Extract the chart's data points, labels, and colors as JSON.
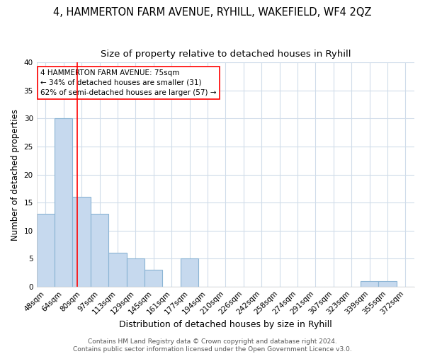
{
  "title": "4, HAMMERTON FARM AVENUE, RYHILL, WAKEFIELD, WF4 2QZ",
  "subtitle": "Size of property relative to detached houses in Ryhill",
  "xlabel": "Distribution of detached houses by size in Ryhill",
  "ylabel": "Number of detached properties",
  "categories": [
    "48sqm",
    "64sqm",
    "80sqm",
    "97sqm",
    "113sqm",
    "129sqm",
    "145sqm",
    "161sqm",
    "177sqm",
    "194sqm",
    "210sqm",
    "226sqm",
    "242sqm",
    "258sqm",
    "274sqm",
    "291sqm",
    "307sqm",
    "323sqm",
    "339sqm",
    "355sqm",
    "372sqm"
  ],
  "values": [
    13,
    30,
    16,
    13,
    6,
    5,
    3,
    0,
    5,
    0,
    0,
    0,
    0,
    0,
    0,
    0,
    0,
    0,
    1,
    1,
    0
  ],
  "bar_color": "#c6d9ee",
  "bar_edge_color": "#8ab4d4",
  "grid_color": "#d0dcea",
  "background_color": "#ffffff",
  "annotation_text_line1": "4 HAMMERTON FARM AVENUE: 75sqm",
  "annotation_text_line2": "← 34% of detached houses are smaller (31)",
  "annotation_text_line3": "62% of semi-detached houses are larger (57) →",
  "annotation_box_color": "white",
  "annotation_box_edge_color": "red",
  "red_line_x": 1.75,
  "ylim": [
    0,
    40
  ],
  "yticks": [
    0,
    5,
    10,
    15,
    20,
    25,
    30,
    35,
    40
  ],
  "footer_text": "Contains HM Land Registry data © Crown copyright and database right 2024.\nContains public sector information licensed under the Open Government Licence v3.0.",
  "title_fontsize": 10.5,
  "subtitle_fontsize": 9.5,
  "xlabel_fontsize": 9,
  "ylabel_fontsize": 8.5,
  "annotation_fontsize": 7.5,
  "footer_fontsize": 6.5,
  "tick_fontsize": 7.5
}
